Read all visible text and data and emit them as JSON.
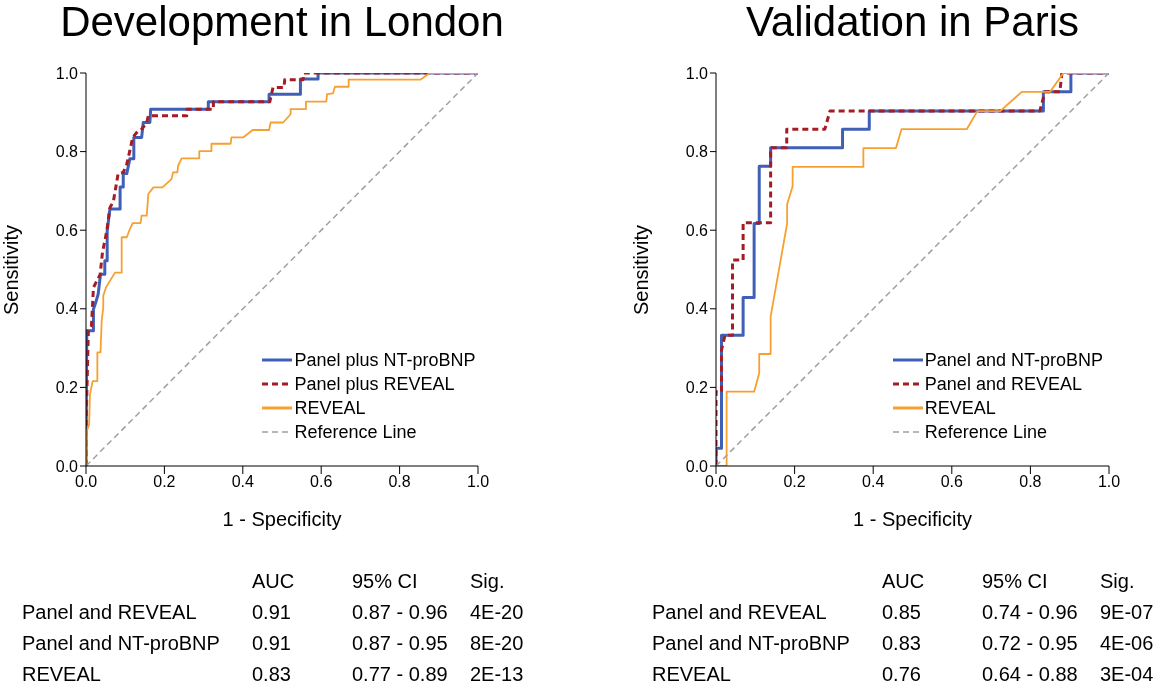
{
  "chart_data": [
    {
      "type": "line",
      "title": "Development in London",
      "xlabel": "1 - Specificity",
      "ylabel": "Sensitivity",
      "xlim": [
        0,
        1
      ],
      "ylim": [
        0,
        1
      ],
      "xticks": [
        {
          "value": 0,
          "label": "0.0"
        },
        {
          "value": 0.2,
          "label": "0.2"
        },
        {
          "value": 0.4,
          "label": "0.4"
        },
        {
          "value": 0.6,
          "label": "0.6"
        },
        {
          "value": 0.8,
          "label": "0.8"
        },
        {
          "value": 1,
          "label": "1.0"
        }
      ],
      "yticks": [
        {
          "value": 0,
          "label": "0.0"
        },
        {
          "value": 0.2,
          "label": "0.2"
        },
        {
          "value": 0.4,
          "label": "0.4"
        },
        {
          "value": 0.6,
          "label": "0.6"
        },
        {
          "value": 0.8,
          "label": "0.8"
        },
        {
          "value": 1,
          "label": "1.0"
        }
      ],
      "legend": "bottom right",
      "marker": "none",
      "series": [
        {
          "name": "Panel plus NT-proBNP",
          "color": "#4060b8",
          "line_style": "solid",
          "x": [
            0,
            0.002,
            0.019,
            0.019,
            0.026,
            0.031,
            0.037,
            0.048,
            0.048,
            0.054,
            0.054,
            0.061,
            0.087,
            0.087,
            0.095,
            0.095,
            0.104,
            0.112,
            0.122,
            0.122,
            0.142,
            0.146,
            0.163,
            0.165,
            0.312,
            0.312,
            0.467,
            0.467,
            0.547,
            0.547,
            0.592,
            0.592,
            1
          ],
          "values": [
            0,
            0.344,
            0.344,
            0.399,
            0.42,
            0.437,
            0.488,
            0.488,
            0.522,
            0.522,
            0.598,
            0.654,
            0.654,
            0.71,
            0.71,
            0.744,
            0.744,
            0.782,
            0.782,
            0.836,
            0.836,
            0.874,
            0.874,
            0.908,
            0.908,
            0.927,
            0.927,
            0.946,
            0.946,
            0.985,
            0.985,
            1,
            1
          ]
        },
        {
          "name": "Panel plus REVEAL",
          "color": "#a51d24",
          "line_style": "dashed",
          "x": [
            0,
            0,
            0.006,
            0.014,
            0.019,
            0.027,
            0.036,
            0.042,
            0.053,
            0.061,
            0.07,
            0.082,
            0.095,
            0.104,
            0.112,
            0.119,
            0.133,
            0.142,
            0.155,
            0.159,
            0.257,
            0.258,
            0.325,
            0.325,
            0.469,
            0.477,
            0.505,
            0.507,
            0.554,
            0.556,
            1
          ],
          "values": [
            0,
            0.098,
            0.344,
            0.357,
            0.454,
            0.47,
            0.487,
            0.543,
            0.598,
            0.657,
            0.674,
            0.744,
            0.747,
            0.768,
            0.803,
            0.836,
            0.853,
            0.857,
            0.874,
            0.891,
            0.891,
            0.908,
            0.908,
            0.927,
            0.927,
            0.963,
            0.963,
            0.983,
            0.983,
            1,
            1
          ]
        },
        {
          "name": "REVEAL",
          "color": "#f7a030",
          "line_style": "solid",
          "x": [
            0,
            0.002,
            0.008,
            0.01,
            0.017,
            0.029,
            0.029,
            0.037,
            0.04,
            0.044,
            0.044,
            0.051,
            0.061,
            0.074,
            0.091,
            0.091,
            0.104,
            0.112,
            0.119,
            0.139,
            0.142,
            0.155,
            0.159,
            0.172,
            0.195,
            0.218,
            0.222,
            0.233,
            0.235,
            0.244,
            0.289,
            0.289,
            0.32,
            0.32,
            0.369,
            0.371,
            0.401,
            0.425,
            0.467,
            0.471,
            0.503,
            0.522,
            0.522,
            0.561,
            0.561,
            0.613,
            0.615,
            0.63,
            0.635,
            0.67,
            0.67,
            0.853,
            0.877,
            1
          ],
          "values": [
            0,
            0.089,
            0.106,
            0.182,
            0.216,
            0.216,
            0.289,
            0.289,
            0.369,
            0.403,
            0.433,
            0.454,
            0.471,
            0.492,
            0.492,
            0.582,
            0.582,
            0.603,
            0.618,
            0.618,
            0.637,
            0.637,
            0.692,
            0.709,
            0.709,
            0.73,
            0.747,
            0.747,
            0.764,
            0.783,
            0.783,
            0.801,
            0.801,
            0.82,
            0.82,
            0.836,
            0.836,
            0.855,
            0.855,
            0.874,
            0.874,
            0.895,
            0.908,
            0.908,
            0.927,
            0.927,
            0.946,
            0.948,
            0.965,
            0.965,
            0.983,
            0.983,
            1,
            1
          ]
        },
        {
          "name": "Reference Line",
          "color": "#a0a0a0",
          "line_style": "dashed",
          "x": [
            0,
            1
          ],
          "values": [
            0,
            1
          ]
        }
      ],
      "annotations": [
        "AUC",
        "95% CI",
        "Sig.",
        "Panel and REVEAL",
        "0.91",
        "0.87 - 0.96",
        "4E-20",
        "Panel and NT-proBNP",
        "0.91",
        "0.87 - 0.95",
        "8E-20",
        "REVEAL",
        "0.83",
        "0.77 - 0.89",
        "2E-13"
      ]
    },
    {
      "type": "line",
      "title": "Validation in Paris",
      "xlabel": "1 - Specificity",
      "ylabel": "Sensitivity",
      "xlim": [
        0,
        1
      ],
      "ylim": [
        0,
        1
      ],
      "xticks": [
        {
          "value": 0,
          "label": "0.0"
        },
        {
          "value": 0.2,
          "label": "0.2"
        },
        {
          "value": 0.4,
          "label": "0.4"
        },
        {
          "value": 0.6,
          "label": "0.6"
        },
        {
          "value": 0.8,
          "label": "0.8"
        },
        {
          "value": 1,
          "label": "1.0"
        }
      ],
      "yticks": [
        {
          "value": 0,
          "label": "0.0"
        },
        {
          "value": 0.2,
          "label": "0.2"
        },
        {
          "value": 0.4,
          "label": "0.4"
        },
        {
          "value": 0.6,
          "label": "0.6"
        },
        {
          "value": 0.8,
          "label": "0.8"
        },
        {
          "value": 1,
          "label": "1.0"
        }
      ],
      "legend": "bottom right",
      "marker": "none",
      "series": [
        {
          "name": "Panel and NT-proBNP",
          "color": "#4060b8",
          "line_style": "solid",
          "x": [
            0,
            0,
            0.014,
            0.014,
            0.069,
            0.069,
            0.097,
            0.097,
            0.11,
            0.11,
            0.139,
            0.139,
            0.322,
            0.322,
            0.39,
            0.39,
            0.833,
            0.833,
            0.903,
            0.903,
            1
          ],
          "values": [
            0,
            0.045,
            0.045,
            0.333,
            0.333,
            0.429,
            0.429,
            0.617,
            0.617,
            0.763,
            0.763,
            0.81,
            0.81,
            0.857,
            0.857,
            0.903,
            0.903,
            0.952,
            0.952,
            1,
            1
          ]
        },
        {
          "name": "Panel and REVEAL",
          "color": "#a51d24",
          "line_style": "dashed",
          "x": [
            0,
            0,
            0.014,
            0.014,
            0.023,
            0.042,
            0.042,
            0.069,
            0.069,
            0.139,
            0.139,
            0.18,
            0.18,
            0.277,
            0.29,
            0.824,
            0.837,
            0.875,
            0.88,
            1
          ],
          "values": [
            0,
            0.189,
            0.189,
            0.295,
            0.333,
            0.333,
            0.524,
            0.524,
            0.619,
            0.619,
            0.81,
            0.81,
            0.857,
            0.857,
            0.903,
            0.903,
            0.952,
            0.952,
            1,
            1
          ]
        },
        {
          "name": "REVEAL",
          "color": "#f7a030",
          "line_style": "solid",
          "x": [
            0,
            0.027,
            0.027,
            0.097,
            0.11,
            0.11,
            0.139,
            0.139,
            0.181,
            0.181,
            0.195,
            0.195,
            0.375,
            0.375,
            0.458,
            0.472,
            0.638,
            0.665,
            0.723,
            0.778,
            0.85,
            0.884,
            1
          ],
          "values": [
            0,
            0,
            0.189,
            0.189,
            0.236,
            0.285,
            0.285,
            0.38,
            0.617,
            0.666,
            0.712,
            0.761,
            0.761,
            0.809,
            0.809,
            0.857,
            0.857,
            0.903,
            0.903,
            0.952,
            0.952,
            1,
            1
          ]
        },
        {
          "name": "Reference Line",
          "color": "#a0a0a0",
          "line_style": "dashed",
          "x": [
            0,
            1
          ],
          "values": [
            0,
            1
          ]
        }
      ],
      "annotations": [
        "AUC",
        "95% CI",
        "Sig.",
        "Panel and REVEAL",
        "0.85",
        "0.74 - 0.96",
        "9E-07",
        "Panel and NT-proBNP",
        "0.83",
        "0.72 - 0.95",
        "4E-06",
        "REVEAL",
        "0.76",
        "0.64 - 0.88",
        "3E-04"
      ]
    }
  ]
}
